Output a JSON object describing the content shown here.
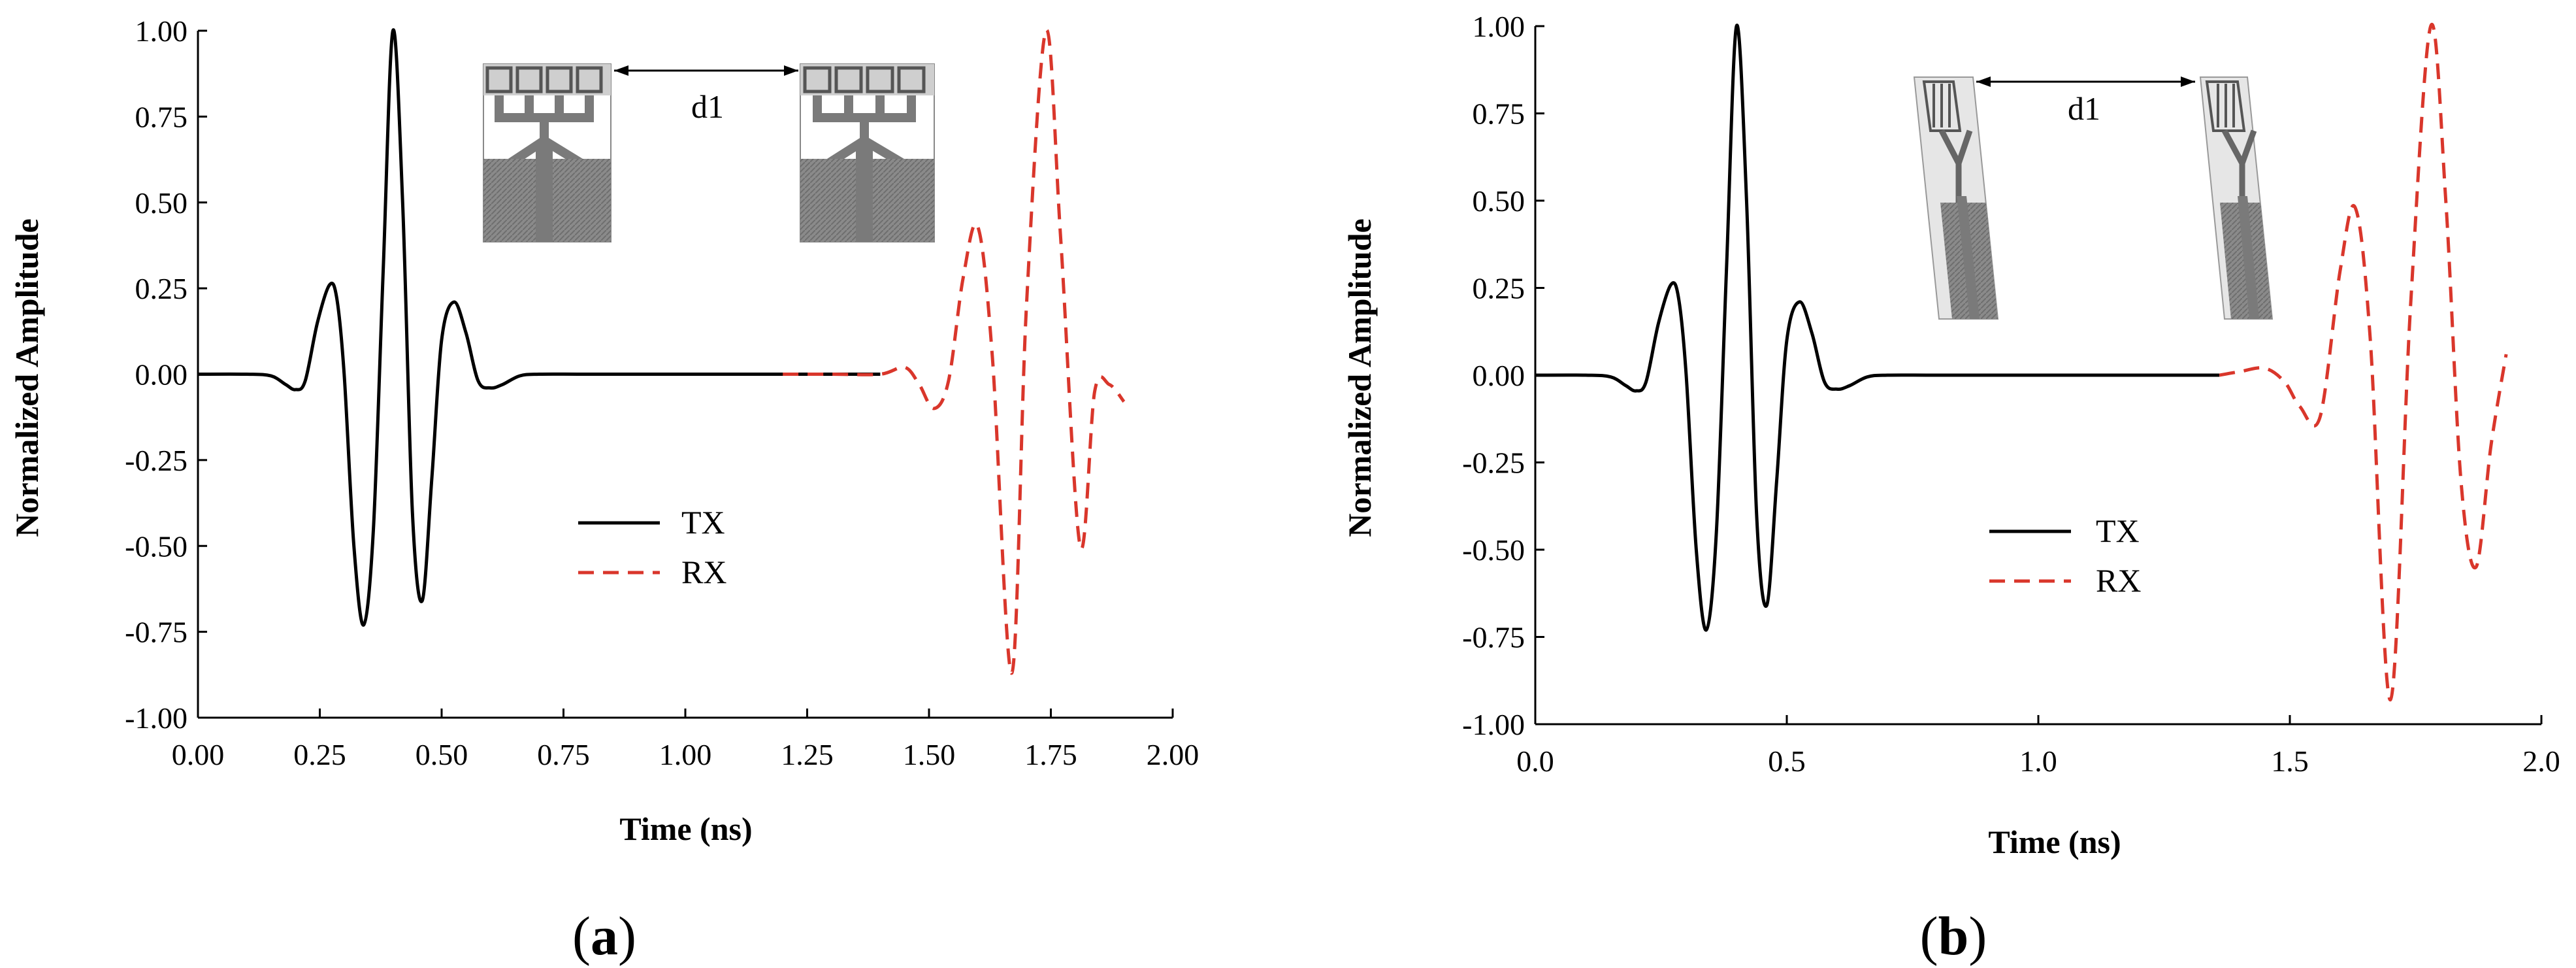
{
  "chart_data": [
    {
      "type": "line",
      "panel_label": "a",
      "xlabel": "Time (ns)",
      "ylabel": "Normalized Amplitude",
      "xlim": [
        0,
        2.0
      ],
      "ylim": [
        -1.0,
        1.0
      ],
      "x_ticks": [
        "0.00",
        "0.25",
        "0.50",
        "0.75",
        "1.00",
        "1.25",
        "1.50",
        "1.75",
        "2.00"
      ],
      "y_ticks": [
        "1.00",
        "0.75",
        "0.50",
        "0.25",
        "0.00",
        "-0.25",
        "-0.50",
        "-0.75",
        "-1.00"
      ],
      "legend_position": "center",
      "inset_label": "d1",
      "series": [
        {
          "name": "TX",
          "color": "#000000",
          "style": "solid",
          "x": [
            0.0,
            0.1,
            0.15,
            0.18,
            0.2,
            0.22,
            0.245,
            0.27,
            0.285,
            0.3,
            0.32,
            0.34,
            0.36,
            0.38,
            0.4,
            0.42,
            0.44,
            0.46,
            0.48,
            0.5,
            0.525,
            0.55,
            0.575,
            0.6,
            0.625,
            0.66,
            0.7,
            0.8,
            1.0,
            1.2,
            1.4
          ],
          "y": [
            0.0,
            0.0,
            -0.005,
            -0.03,
            -0.045,
            -0.02,
            0.15,
            0.26,
            0.22,
            0.0,
            -0.5,
            -0.73,
            -0.45,
            0.3,
            1.0,
            0.5,
            -0.4,
            -0.66,
            -0.3,
            0.1,
            0.21,
            0.12,
            -0.02,
            -0.04,
            -0.03,
            -0.005,
            0.0,
            0.0,
            0.0,
            0.0,
            0.0
          ]
        },
        {
          "name": "RX",
          "color": "#d9362b",
          "style": "dashed",
          "x": [
            1.2,
            1.3,
            1.4,
            1.45,
            1.48,
            1.51,
            1.54,
            1.57,
            1.6,
            1.63,
            1.67,
            1.7,
            1.74,
            1.77,
            1.81,
            1.84,
            1.87,
            1.9
          ],
          "y": [
            0.0,
            0.0,
            0.0,
            0.02,
            -0.03,
            -0.1,
            -0.02,
            0.28,
            0.43,
            0.05,
            -0.87,
            0.2,
            1.0,
            0.4,
            -0.5,
            -0.05,
            -0.03,
            -0.08
          ]
        }
      ]
    },
    {
      "type": "line",
      "panel_label": "b",
      "xlabel": "Time (ns)",
      "ylabel": "Normalized Amplitude",
      "xlim": [
        0,
        2.0
      ],
      "ylim": [
        -1.0,
        1.0
      ],
      "x_ticks": [
        "0.0",
        "0.5",
        "1.0",
        "1.5",
        "2.0"
      ],
      "y_ticks": [
        "1.00",
        "0.75",
        "0.50",
        "0.25",
        "0.00",
        "-0.25",
        "-0.50",
        "-0.75",
        "-1.00"
      ],
      "legend_position": "center",
      "inset_label": "d1",
      "series": [
        {
          "name": "TX",
          "color": "#000000",
          "style": "solid",
          "x": [
            0.0,
            0.1,
            0.15,
            0.18,
            0.2,
            0.22,
            0.245,
            0.27,
            0.285,
            0.3,
            0.32,
            0.34,
            0.36,
            0.38,
            0.4,
            0.42,
            0.44,
            0.46,
            0.48,
            0.5,
            0.525,
            0.55,
            0.575,
            0.6,
            0.625,
            0.66,
            0.7,
            0.8,
            1.0,
            1.2,
            1.36
          ],
          "y": [
            0.0,
            0.0,
            -0.005,
            -0.03,
            -0.045,
            -0.02,
            0.15,
            0.26,
            0.22,
            0.0,
            -0.5,
            -0.73,
            -0.45,
            0.3,
            1.0,
            0.5,
            -0.4,
            -0.66,
            -0.3,
            0.1,
            0.21,
            0.12,
            -0.02,
            -0.04,
            -0.03,
            -0.005,
            0.0,
            0.0,
            0.0,
            0.0,
            0.0
          ]
        },
        {
          "name": "RX",
          "color": "#d9362b",
          "style": "dashed",
          "x": [
            1.36,
            1.4,
            1.45,
            1.49,
            1.52,
            1.56,
            1.6,
            1.63,
            1.66,
            1.7,
            1.74,
            1.78,
            1.81,
            1.84,
            1.87,
            1.9,
            1.93
          ],
          "y": [
            0.0,
            0.01,
            0.02,
            -0.02,
            -0.09,
            -0.12,
            0.3,
            0.48,
            0.1,
            -0.93,
            0.2,
            1.0,
            0.5,
            -0.3,
            -0.55,
            -0.2,
            0.06
          ]
        }
      ]
    }
  ]
}
